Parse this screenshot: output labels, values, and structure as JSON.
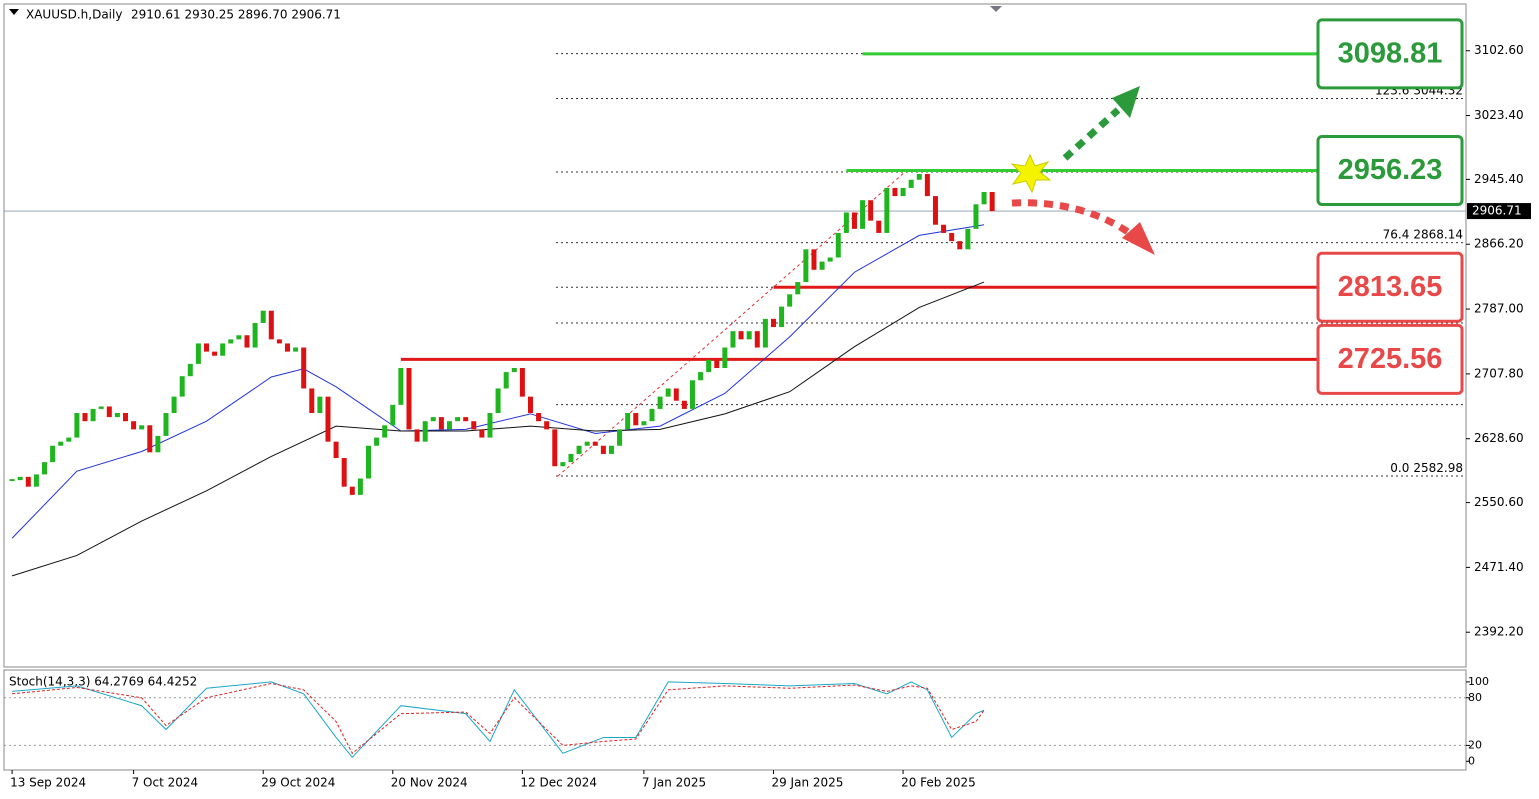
{
  "chart_data": {
    "type": "candlestick",
    "header": {
      "symbol": "XAUUSD.h,Daily",
      "ohlc": "2910.61 2930.25 2896.70 2906.71"
    },
    "ylim": [
      2349.7,
      3159.7
    ],
    "yticks": [
      {
        "value": 3102.6,
        "label": "3102.60"
      },
      {
        "value": 3023.4,
        "label": "3023.40"
      },
      {
        "value": 2945.4,
        "label": "2945.40"
      },
      {
        "value": 2866.2,
        "label": "2866.20"
      },
      {
        "value": 2787,
        "label": "2787.00"
      },
      {
        "value": 2707.8,
        "label": "2707.80"
      },
      {
        "value": 2628.6,
        "label": "2628.60"
      },
      {
        "value": 2550.6,
        "label": "2550.60"
      },
      {
        "value": 2471.4,
        "label": "2471.40"
      },
      {
        "value": 2392.2,
        "label": "2392.20"
      }
    ],
    "xlim": [
      -1,
      179.5
    ],
    "xticks": [
      {
        "value": 0,
        "label": "13 Sep 2024"
      },
      {
        "value": 15,
        "label": "7 Oct 2024"
      },
      {
        "value": 31,
        "label": "29 Oct 2024"
      },
      {
        "value": 47,
        "label": "20 Nov 2024"
      },
      {
        "value": 63,
        "label": "12 Dec 2024"
      },
      {
        "value": 78,
        "label": "7 Jan 2025"
      },
      {
        "value": 94,
        "label": "29 Jan 2025"
      },
      {
        "value": 110,
        "label": "20 Feb 2025"
      }
    ],
    "closes": [
      2578,
      2582,
      2570,
      2585,
      2600,
      2620,
      2625,
      2630,
      2660,
      2650,
      2665,
      2668,
      2655,
      2660,
      2650,
      2640,
      2645,
      2612,
      2632,
      2660,
      2680,
      2705,
      2720,
      2745,
      2735,
      2730,
      2745,
      2750,
      2755,
      2740,
      2770,
      2785,
      2750,
      2745,
      2735,
      2740,
      2690,
      2660,
      2680,
      2625,
      2605,
      2570,
      2560,
      2580,
      2620,
      2630,
      2645,
      2670,
      2715,
      2640,
      2625,
      2650,
      2655,
      2640,
      2650,
      2655,
      2650,
      2640,
      2630,
      2660,
      2690,
      2710,
      2715,
      2680,
      2660,
      2650,
      2640,
      2595,
      2600,
      2610,
      2620,
      2625,
      2620,
      2610,
      2620,
      2640,
      2660,
      2645,
      2650,
      2665,
      2680,
      2690,
      2675,
      2665,
      2700,
      2710,
      2725,
      2715,
      2740,
      2760,
      2750,
      2760,
      2740,
      2775,
      2765,
      2790,
      2805,
      2820,
      2860,
      2835,
      2845,
      2850,
      2880,
      2905,
      2885,
      2920,
      2895,
      2880,
      2935,
      2925,
      2935,
      2945,
      2952,
      2925,
      2890,
      2880,
      2870,
      2860,
      2885,
      2915,
      2930,
      2906.71
    ],
    "up_color": "#1fb51f",
    "down_color": "#dd1111",
    "series": [
      {
        "color": "#2233dd",
        "x": [
          0,
          8,
          16,
          24,
          32,
          36,
          40,
          48,
          56,
          64,
          72,
          80,
          88,
          96,
          104,
          112,
          120
        ],
        "values": [
          2507,
          2589,
          2613,
          2650,
          2704,
          2714,
          2692,
          2638,
          2640,
          2659,
          2635,
          2644,
          2684,
          2753,
          2832,
          2877,
          2890
        ]
      },
      {
        "color": "#111111",
        "x": [
          0,
          8,
          16,
          24,
          32,
          40,
          48,
          56,
          64,
          72,
          80,
          88,
          96,
          104,
          112,
          120
        ],
        "values": [
          2461,
          2486,
          2528,
          2565,
          2607,
          2644,
          2638,
          2638,
          2644,
          2638,
          2640,
          2659,
          2686,
          2741,
          2789,
          2820
        ]
      }
    ],
    "last_price": 2906.71,
    "guides": [
      {
        "level": null,
        "price": 3099
      },
      {
        "level": "123.6",
        "price": 3044.32
      },
      {
        "level": null,
        "price": 2954.5
      },
      {
        "level": "76.4",
        "price": 2868.14
      },
      {
        "level": null,
        "price": 2813.6
      },
      {
        "level": null,
        "price": 2769.9
      },
      {
        "level": null,
        "price": 2670.3
      },
      {
        "level": "0.0",
        "price": 2582.98
      }
    ],
    "levels": [
      {
        "price": 3098.81,
        "from": 105,
        "color": "#33cc33",
        "box": "green"
      },
      {
        "price": 2956.23,
        "from": 103,
        "color": "#33cc33",
        "box": "green"
      },
      {
        "price": 2813.65,
        "from": 94,
        "color": "#e01818",
        "box": "red"
      },
      {
        "price": 2725.56,
        "from": 48,
        "color": "#e01818",
        "box": "red"
      }
    ],
    "stoch": {
      "title": "Stoch(14,3,3) 64.2769 64.4252",
      "ylim": [
        -11,
        115
      ],
      "yticks": [
        100,
        80,
        20,
        0
      ],
      "levels": [
        80,
        20
      ],
      "x": [
        0,
        8,
        16,
        19,
        24,
        32,
        36,
        40,
        42,
        48,
        56,
        59,
        62,
        68,
        73,
        77,
        81,
        88,
        96,
        104,
        108,
        111,
        113,
        116,
        119,
        120
      ],
      "main": {
        "color": "#1aa7c8",
        "values": [
          88,
          95,
          70,
          40,
          92,
          100,
          85,
          30,
          5,
          70,
          60,
          25,
          90,
          10,
          30,
          30,
          100,
          98,
          95,
          98,
          85,
          100,
          90,
          30,
          60,
          64.28
        ]
      },
      "signal": {
        "color": "#dd2222",
        "values": [
          85,
          93,
          80,
          45,
          80,
          98,
          90,
          50,
          10,
          60,
          62,
          35,
          80,
          20,
          25,
          28,
          90,
          95,
          92,
          96,
          88,
          95,
          92,
          40,
          50,
          64.43
        ]
      }
    }
  }
}
